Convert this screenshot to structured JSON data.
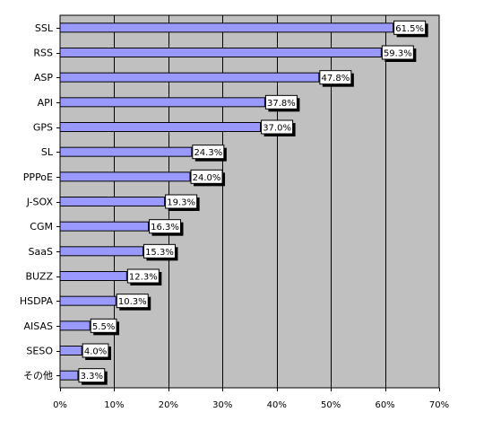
{
  "chart_data": {
    "type": "bar",
    "orientation": "horizontal",
    "categories": [
      "SSL",
      "RSS",
      "ASP",
      "API",
      "GPS",
      "SL",
      "PPPoE",
      "J-SOX",
      "CGM",
      "SaaS",
      "BUZZ",
      "HSDPA",
      "AISAS",
      "SESO",
      "その他"
    ],
    "values": [
      61.5,
      59.3,
      47.8,
      37.8,
      37.0,
      24.3,
      24.0,
      19.3,
      16.3,
      15.3,
      12.3,
      10.3,
      5.5,
      4.0,
      3.3
    ],
    "data_labels": [
      "61.5%",
      "59.3%",
      "47.8%",
      "37.8%",
      "37.0%",
      "24.3%",
      "24.0%",
      "19.3%",
      "16.3%",
      "15.3%",
      "12.3%",
      "10.3%",
      "5.5%",
      "4.0%",
      "3.3%"
    ],
    "x_ticks": [
      0,
      10,
      20,
      30,
      40,
      50,
      60,
      70
    ],
    "x_tick_labels": [
      "0%",
      "10%",
      "20%",
      "30%",
      "40%",
      "50%",
      "60%",
      "70%"
    ],
    "xlim": [
      0,
      70
    ],
    "title": "",
    "xlabel": "",
    "ylabel": "",
    "grid": "vertical",
    "legend": "none",
    "colors": {
      "bar_fill": "#9999ff",
      "bar_stroke": "#000000",
      "plot_background": "#c0c0c0",
      "grid": "#000000",
      "label_box_fill": "#ffffff",
      "label_box_shadow": "#000000"
    }
  }
}
